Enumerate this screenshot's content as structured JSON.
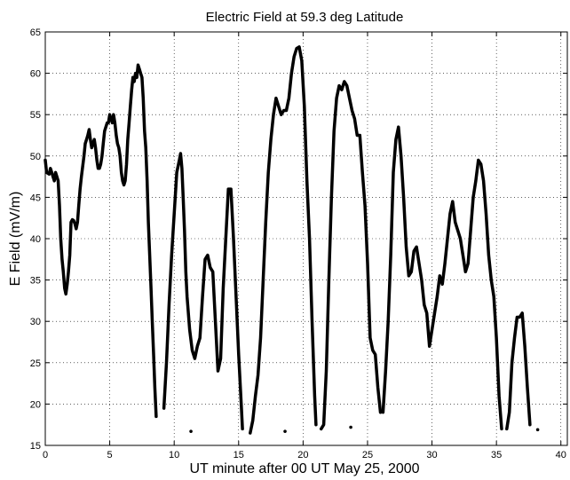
{
  "chart_data": {
    "type": "line",
    "title": "Electric Field at 59.3 deg Latitude",
    "xlabel": "UT minute after 00 UT  May 25, 2000",
    "ylabel": "E Field (mV/m)",
    "xlim": [
      0,
      40.5
    ],
    "ylim": [
      15,
      65
    ],
    "xticks": [
      0,
      5,
      10,
      15,
      20,
      25,
      30,
      35,
      40
    ],
    "yticks": [
      15,
      20,
      25,
      30,
      35,
      40,
      45,
      50,
      55,
      60,
      65
    ],
    "grid": true,
    "line_color": "#000000",
    "series": [
      {
        "segments": [
          [
            [
              0,
              49.5
            ],
            [
              0.1,
              48
            ],
            [
              0.3,
              47.8
            ],
            [
              0.4,
              48.5
            ],
            [
              0.5,
              48
            ],
            [
              0.6,
              47.5
            ],
            [
              0.7,
              47
            ],
            [
              0.8,
              48
            ],
            [
              0.9,
              47.5
            ],
            [
              1.0,
              47
            ],
            [
              1.1,
              44
            ],
            [
              1.2,
              40
            ],
            [
              1.3,
              37.5
            ],
            [
              1.4,
              36
            ],
            [
              1.5,
              34
            ],
            [
              1.6,
              33.3
            ],
            [
              1.7,
              34.5
            ],
            [
              1.8,
              36
            ],
            [
              1.9,
              38
            ],
            [
              2.0,
              42
            ],
            [
              2.1,
              42.3
            ],
            [
              2.2,
              42.2
            ],
            [
              2.3,
              41.8
            ],
            [
              2.4,
              41.2
            ],
            [
              2.5,
              42
            ],
            [
              2.6,
              44
            ],
            [
              2.7,
              46
            ],
            [
              2.8,
              47.5
            ],
            [
              3.0,
              50
            ],
            [
              3.1,
              51.5
            ],
            [
              3.2,
              52
            ],
            [
              3.3,
              52.5
            ],
            [
              3.4,
              53.2
            ],
            [
              3.5,
              52
            ],
            [
              3.6,
              51
            ],
            [
              3.7,
              51.5
            ],
            [
              3.8,
              52
            ],
            [
              3.9,
              51
            ],
            [
              4.0,
              49.5
            ],
            [
              4.1,
              48.5
            ],
            [
              4.2,
              48.5
            ],
            [
              4.3,
              49
            ],
            [
              4.4,
              50
            ],
            [
              4.5,
              51.5
            ],
            [
              4.6,
              53
            ],
            [
              4.7,
              53.5
            ],
            [
              4.8,
              54
            ],
            [
              4.9,
              54
            ],
            [
              5.0,
              55
            ],
            [
              5.1,
              54.5
            ],
            [
              5.2,
              54
            ],
            [
              5.3,
              55
            ],
            [
              5.4,
              54
            ],
            [
              5.5,
              52.5
            ],
            [
              5.6,
              51.5
            ],
            [
              5.7,
              51
            ],
            [
              5.8,
              50
            ],
            [
              5.9,
              48
            ],
            [
              6.0,
              47
            ],
            [
              6.1,
              46.5
            ],
            [
              6.2,
              47
            ],
            [
              6.3,
              49
            ],
            [
              6.4,
              52
            ],
            [
              6.5,
              54
            ],
            [
              6.6,
              56
            ],
            [
              6.7,
              58
            ],
            [
              6.8,
              59.5
            ],
            [
              6.9,
              59
            ],
            [
              7.0,
              60
            ],
            [
              7.1,
              59.5
            ],
            [
              7.2,
              61
            ],
            [
              7.3,
              60.5
            ],
            [
              7.4,
              60
            ],
            [
              7.5,
              59.5
            ],
            [
              7.6,
              57
            ],
            [
              7.7,
              53
            ],
            [
              7.8,
              51
            ],
            [
              7.9,
              47
            ],
            [
              8.0,
              42
            ],
            [
              8.1,
              38
            ],
            [
              8.2,
              34
            ],
            [
              8.3,
              30
            ],
            [
              8.4,
              26
            ],
            [
              8.5,
              22
            ],
            [
              8.6,
              18.5
            ]
          ],
          [
            [
              9.2,
              19.5
            ],
            [
              9.4,
              25
            ],
            [
              9.6,
              32
            ],
            [
              9.8,
              38
            ],
            [
              10.0,
              43
            ],
            [
              10.2,
              48
            ],
            [
              10.4,
              49.5
            ],
            [
              10.5,
              50.3
            ],
            [
              10.6,
              48.5
            ],
            [
              10.7,
              45
            ],
            [
              10.8,
              41
            ],
            [
              10.9,
              36
            ],
            [
              11.0,
              33
            ],
            [
              11.2,
              29
            ],
            [
              11.4,
              26.5
            ],
            [
              11.6,
              25.5
            ],
            [
              11.8,
              27
            ],
            [
              12.0,
              28
            ],
            [
              12.2,
              33
            ],
            [
              12.4,
              37.5
            ],
            [
              12.6,
              38
            ],
            [
              12.8,
              36.5
            ],
            [
              13.0,
              36
            ],
            [
              13.2,
              30
            ],
            [
              13.4,
              24
            ],
            [
              13.6,
              25.5
            ],
            [
              13.8,
              34
            ],
            [
              14.0,
              40
            ],
            [
              14.2,
              46
            ],
            [
              14.4,
              46
            ],
            [
              14.6,
              40
            ],
            [
              14.8,
              33
            ],
            [
              15.0,
              26
            ],
            [
              15.2,
              20
            ],
            [
              15.3,
              17
            ]
          ],
          [
            [
              15.9,
              16.5
            ],
            [
              16.1,
              18
            ],
            [
              16.3,
              21
            ],
            [
              16.5,
              23.5
            ],
            [
              16.7,
              28
            ],
            [
              16.9,
              35
            ],
            [
              17.1,
              42
            ],
            [
              17.3,
              48
            ],
            [
              17.5,
              52
            ],
            [
              17.7,
              55
            ],
            [
              17.9,
              57
            ],
            [
              18.1,
              56
            ],
            [
              18.3,
              55
            ],
            [
              18.5,
              55.5
            ],
            [
              18.7,
              55.5
            ],
            [
              18.9,
              57
            ],
            [
              19.1,
              60
            ],
            [
              19.3,
              62
            ],
            [
              19.5,
              63
            ],
            [
              19.7,
              63.2
            ],
            [
              19.9,
              61.5
            ],
            [
              20.1,
              56
            ],
            [
              20.3,
              47
            ],
            [
              20.5,
              40
            ],
            [
              20.7,
              30
            ],
            [
              20.9,
              21
            ],
            [
              21.0,
              17.5
            ]
          ],
          [
            [
              21.4,
              17
            ],
            [
              21.6,
              17.5
            ],
            [
              21.8,
              24
            ],
            [
              22.0,
              35
            ],
            [
              22.2,
              45
            ],
            [
              22.4,
              53
            ],
            [
              22.6,
              57
            ],
            [
              22.8,
              58.5
            ],
            [
              23.0,
              58
            ],
            [
              23.2,
              59
            ],
            [
              23.4,
              58.5
            ],
            [
              23.6,
              57
            ],
            [
              23.8,
              55.5
            ],
            [
              24.0,
              54.5
            ],
            [
              24.2,
              52.5
            ],
            [
              24.4,
              52.5
            ],
            [
              24.6,
              48
            ],
            [
              24.8,
              44
            ],
            [
              25.0,
              37
            ],
            [
              25.2,
              28
            ],
            [
              25.4,
              26.5
            ],
            [
              25.6,
              26
            ],
            [
              25.8,
              22
            ],
            [
              26.0,
              19
            ]
          ],
          [
            [
              26.2,
              19
            ],
            [
              26.4,
              24
            ],
            [
              26.6,
              30
            ],
            [
              26.8,
              38
            ],
            [
              27.0,
              48
            ],
            [
              27.2,
              52
            ],
            [
              27.4,
              53.5
            ],
            [
              27.6,
              50
            ],
            [
              27.8,
              45
            ],
            [
              28.0,
              39
            ],
            [
              28.2,
              35.5
            ],
            [
              28.4,
              36
            ],
            [
              28.6,
              38.5
            ],
            [
              28.8,
              39
            ],
            [
              29.0,
              37
            ],
            [
              29.2,
              35
            ],
            [
              29.4,
              32
            ],
            [
              29.6,
              31
            ],
            [
              29.8,
              27
            ],
            [
              30.0,
              29
            ],
            [
              30.2,
              31
            ],
            [
              30.4,
              33
            ],
            [
              30.6,
              35.5
            ],
            [
              30.8,
              34.5
            ],
            [
              31.0,
              37
            ],
            [
              31.2,
              40
            ],
            [
              31.4,
              43
            ],
            [
              31.6,
              44.5
            ],
            [
              31.8,
              42
            ],
            [
              32.0,
              41
            ],
            [
              32.2,
              40
            ],
            [
              32.4,
              38
            ],
            [
              32.6,
              36
            ],
            [
              32.8,
              37
            ],
            [
              33.0,
              41
            ],
            [
              33.2,
              45
            ],
            [
              33.4,
              47
            ],
            [
              33.6,
              49.5
            ],
            [
              33.8,
              49
            ],
            [
              34.0,
              47
            ],
            [
              34.2,
              43
            ],
            [
              34.4,
              38
            ],
            [
              34.6,
              35
            ],
            [
              34.8,
              33
            ],
            [
              35.0,
              28
            ],
            [
              35.2,
              21
            ],
            [
              35.4,
              17
            ]
          ],
          [
            [
              35.8,
              17
            ],
            [
              36.0,
              19
            ],
            [
              36.2,
              25
            ],
            [
              36.4,
              28
            ],
            [
              36.6,
              30.5
            ],
            [
              36.8,
              30.5
            ],
            [
              37.0,
              31
            ],
            [
              37.2,
              27
            ],
            [
              37.4,
              22
            ],
            [
              37.6,
              17.5
            ]
          ]
        ],
        "dots": [
          [
            11.3,
            16.7
          ],
          [
            18.6,
            16.7
          ],
          [
            23.7,
            17.2
          ],
          [
            38.2,
            16.9
          ]
        ]
      }
    ]
  }
}
